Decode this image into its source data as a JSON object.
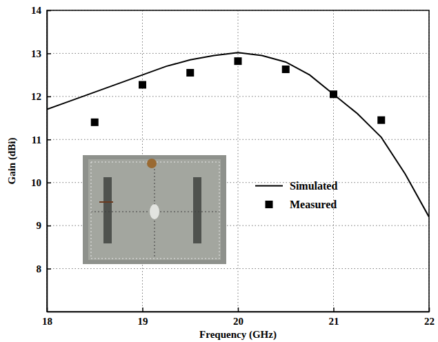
{
  "chart_data": {
    "type": "line",
    "x_label": "Frequency (GHz)",
    "y_label": "Gain (dBi)",
    "xlim": [
      18,
      22
    ],
    "ylim": [
      7,
      14
    ],
    "xticks": [
      18,
      19,
      20,
      21,
      22
    ],
    "yticks": [
      8,
      9,
      10,
      11,
      12,
      13,
      14
    ],
    "grid": true,
    "legend": "center right",
    "series": [
      {
        "name": "Simulated",
        "type": "line",
        "color": "#000000",
        "line_style": "solid",
        "x": [
          18,
          18.25,
          18.5,
          18.75,
          19,
          19.25,
          19.5,
          19.75,
          20,
          20.25,
          20.5,
          20.75,
          21,
          21.25,
          21.5,
          21.75,
          22
        ],
        "values": [
          11.7,
          11.9,
          12.1,
          12.3,
          12.5,
          12.7,
          12.85,
          12.95,
          13.02,
          12.95,
          12.8,
          12.5,
          12.05,
          11.6,
          11.05,
          10.2,
          9.2
        ]
      },
      {
        "name": "Measured",
        "type": "scatter",
        "color": "#000000",
        "marker": "square",
        "x": [
          18.5,
          19,
          19.5,
          20,
          20.5,
          21,
          21.5
        ],
        "values": [
          11.4,
          12.27,
          12.55,
          12.82,
          12.63,
          12.05,
          11.45
        ]
      }
    ]
  }
}
